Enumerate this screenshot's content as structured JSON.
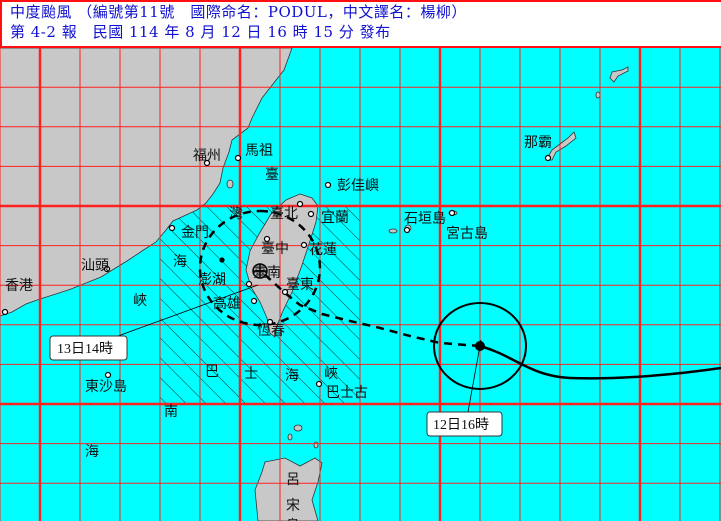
{
  "header": {
    "line1": "中度颱風 （編號第11號　國際命名：PODUL，中文譯名：楊柳）",
    "line2": "第 4-2 報　民國 114 年 8 月 12 日 16 時 15 分 發布"
  },
  "colors": {
    "sea": "#00ffff",
    "land": "#c8c8c8",
    "grid": "#ff2020",
    "header_text": "#1010d0",
    "track": "#000000"
  },
  "places": {
    "fuzhou": "福州",
    "matsu": "馬祖",
    "pengjia": "彭佳嶼",
    "taipei": "臺北",
    "yilan": "宜蘭",
    "taichung": "臺中",
    "hualien": "花蓮",
    "kinmen": "金門",
    "penghu": "澎湖",
    "tainan": "臺南",
    "taitung": "臺東",
    "kaohsiung": "高雄",
    "hengchun": "恆春",
    "shantou": "汕頭",
    "hongkong": "香港",
    "dongsha": "東沙島",
    "basco": "巴士古",
    "naha": "那霸",
    "ishigaki": "石垣島",
    "miyako": "宮古島"
  },
  "regions": {
    "strait": [
      "臺",
      "灣",
      "海",
      "峽"
    ],
    "bashi": [
      "巴",
      "士",
      "海",
      "峽"
    ],
    "scs": [
      "南",
      "海"
    ],
    "luzon": [
      "呂",
      "宋",
      "島"
    ]
  },
  "track": {
    "current_time_label": "12日16時",
    "forecast_time_label": "13日14時",
    "observed_style": "solid",
    "forecast_style": "dashed",
    "warning_area": "hatched"
  }
}
